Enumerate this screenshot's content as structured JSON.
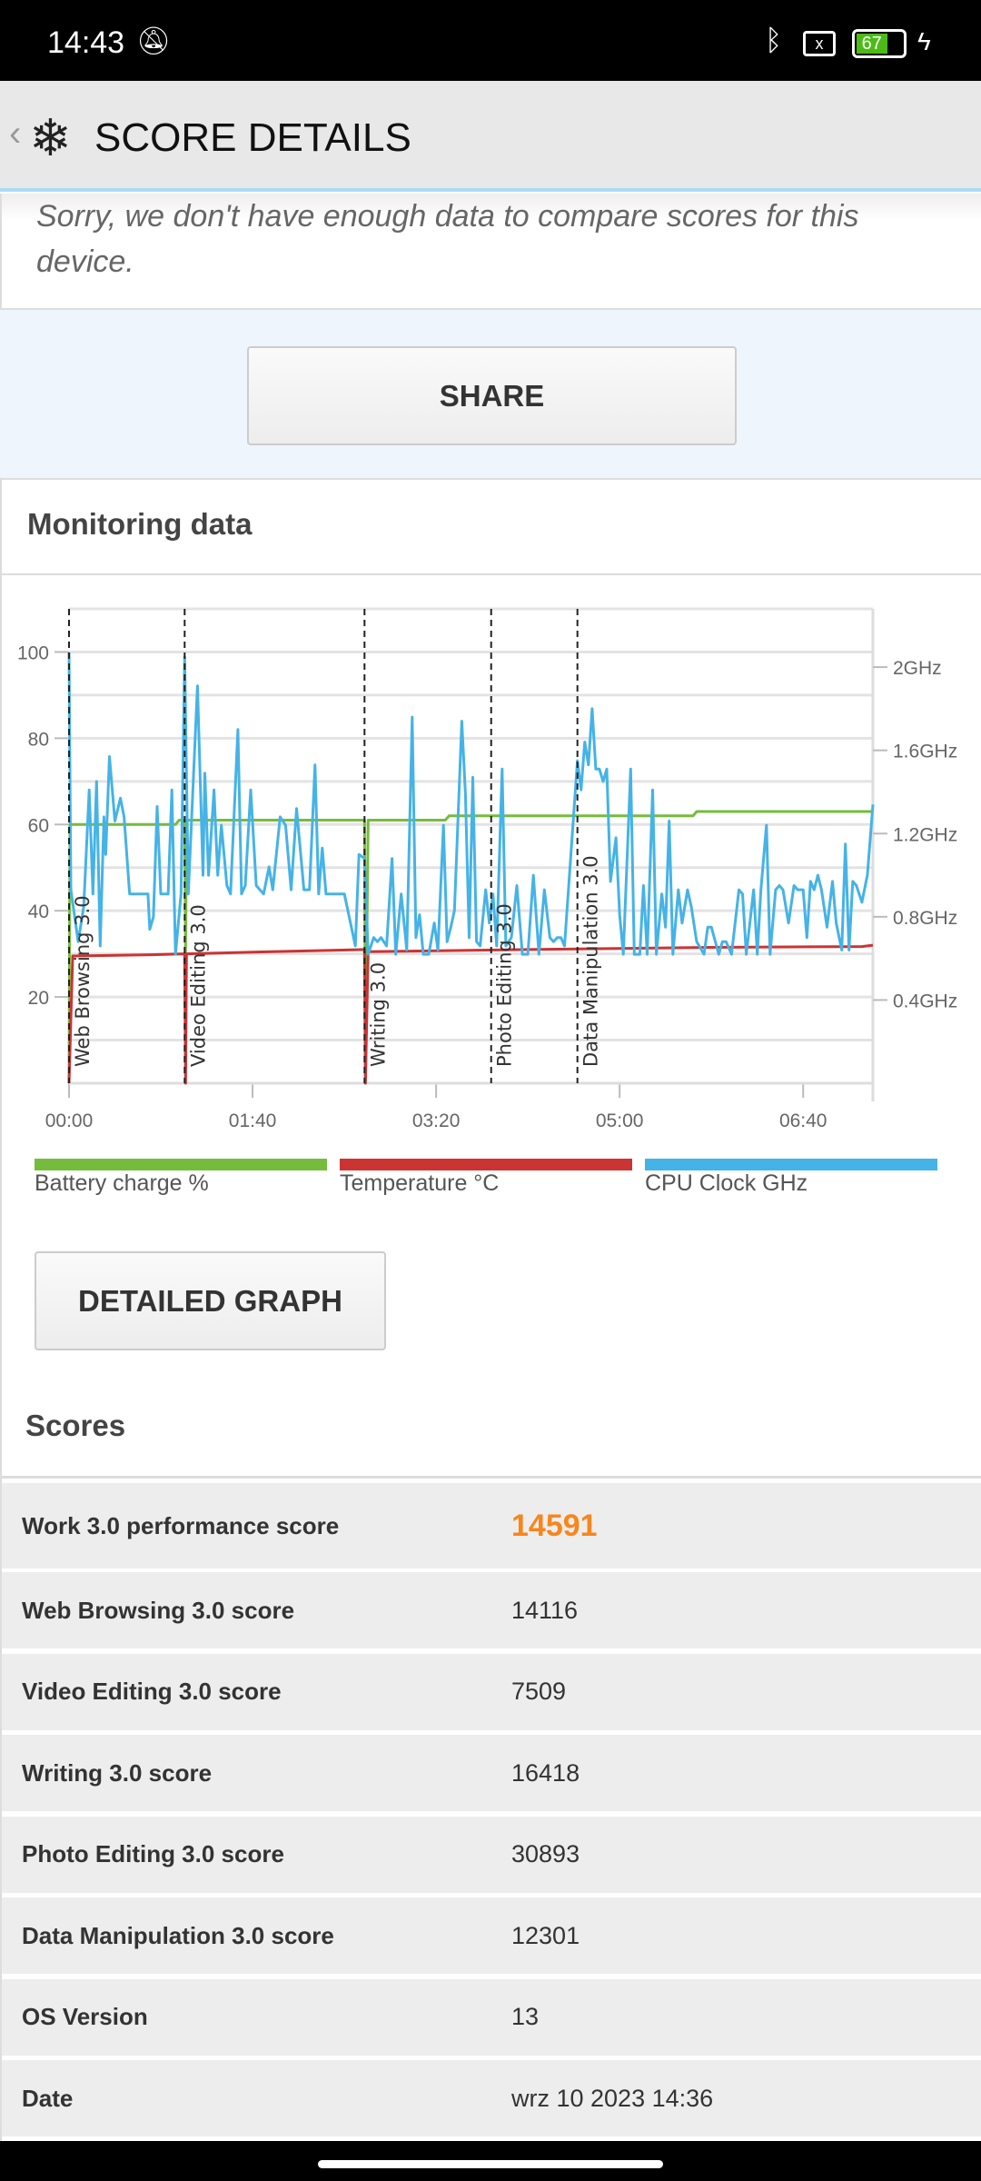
{
  "status_bar": {
    "time": "14:43",
    "battery": "67"
  },
  "header": {
    "title": "SCORE DETAILS"
  },
  "notice": "Sorry, we don't have enough data to compare scores for this device.",
  "share_label": "SHARE",
  "monitoring": {
    "title": "Monitoring data",
    "detailed_graph_label": "DETAILED GRAPH"
  },
  "colors": {
    "battery": "#76bc3c",
    "temperature": "#cc3333",
    "cpu": "#45b3e6",
    "accent": "#f7861d"
  },
  "chart_data": {
    "type": "line",
    "xlim": [
      0,
      438
    ],
    "x_ticks": [
      {
        "v": 0,
        "label": "00:00"
      },
      {
        "v": 100,
        "label": "01:40"
      },
      {
        "v": 200,
        "label": "03:20"
      },
      {
        "v": 300,
        "label": "05:00"
      },
      {
        "v": 400,
        "label": "06:40"
      }
    ],
    "y_left": {
      "range": [
        0,
        110
      ],
      "ticks": [
        {
          "v": 20,
          "label": "20"
        },
        {
          "v": 40,
          "label": "40"
        },
        {
          "v": 60,
          "label": "60"
        },
        {
          "v": 80,
          "label": "80"
        },
        {
          "v": 100,
          "label": "100"
        }
      ]
    },
    "y_right": {
      "range": [
        0,
        2.28
      ],
      "ticks": [
        {
          "v": 0.4,
          "label": "0.4GHz"
        },
        {
          "v": 0.8,
          "label": "0.8GHz"
        },
        {
          "v": 1.2,
          "label": "1.2GHz"
        },
        {
          "v": 1.6,
          "label": "1.6GHz"
        },
        {
          "v": 2.0,
          "label": "2GHz"
        }
      ]
    },
    "events": [
      {
        "t": 0,
        "label": "Web Browsing 3.0"
      },
      {
        "t": 63,
        "label": "Video Editing 3.0"
      },
      {
        "t": 161,
        "label": "Writing 3.0"
      },
      {
        "t": 230,
        "label": "Photo Editing 3.0"
      },
      {
        "t": 277,
        "label": "Data Manipulation 3.0"
      }
    ],
    "legend": [
      "Battery charge %",
      "Temperature °C",
      "CPU Clock GHz"
    ],
    "series": [
      {
        "name": "Battery charge %",
        "axis": "left",
        "points": [
          [
            0,
            0
          ],
          [
            0.5,
            60
          ],
          [
            58,
            60
          ],
          [
            60,
            61
          ],
          [
            63,
            61
          ],
          [
            63.5,
            30
          ],
          [
            64,
            61
          ],
          [
            161,
            61
          ],
          [
            161.5,
            0
          ],
          [
            163,
            61
          ],
          [
            205,
            61
          ],
          [
            207,
            62
          ],
          [
            340,
            62
          ],
          [
            342,
            63
          ],
          [
            438,
            63
          ]
        ]
      },
      {
        "name": "Temperature °C",
        "axis": "left",
        "points": [
          [
            0,
            0
          ],
          [
            2,
            29.5
          ],
          [
            45,
            29.8
          ],
          [
            63,
            30
          ],
          [
            63.5,
            0
          ],
          [
            64,
            30
          ],
          [
            110,
            30.5
          ],
          [
            161,
            31
          ],
          [
            161.5,
            0
          ],
          [
            163,
            30.5
          ],
          [
            250,
            31
          ],
          [
            350,
            31.5
          ],
          [
            432,
            31.7
          ],
          [
            438,
            32
          ]
        ]
      },
      {
        "name": "CPU Clock GHz",
        "axis": "right",
        "points": [
          [
            0,
            2.07
          ],
          [
            1,
            0.93
          ],
          [
            5,
            0.68
          ],
          [
            8,
            0.85
          ],
          [
            11,
            1.41
          ],
          [
            13,
            0.91
          ],
          [
            15,
            1.45
          ],
          [
            17,
            0.66
          ],
          [
            19,
            1.28
          ],
          [
            20,
            1.1
          ],
          [
            22,
            1.57
          ],
          [
            25,
            1.26
          ],
          [
            28,
            1.37
          ],
          [
            30,
            1.28
          ],
          [
            33,
            0.91
          ],
          [
            43,
            0.91
          ],
          [
            44,
            0.74
          ],
          [
            46,
            0.8
          ],
          [
            48,
            1.33
          ],
          [
            50,
            0.91
          ],
          [
            54,
            0.91
          ],
          [
            56,
            1.41
          ],
          [
            58,
            0.62
          ],
          [
            61,
            0.91
          ],
          [
            63,
            2.05
          ],
          [
            65,
            0.91
          ],
          [
            70,
            1.91
          ],
          [
            73,
            1.0
          ],
          [
            74,
            1.49
          ],
          [
            76,
            1.0
          ],
          [
            79,
            1.41
          ],
          [
            81,
            1.0
          ],
          [
            83,
            1.24
          ],
          [
            86,
            0.95
          ],
          [
            88,
            0.91
          ],
          [
            92,
            1.7
          ],
          [
            94,
            0.91
          ],
          [
            96,
            0.95
          ],
          [
            99,
            1.41
          ],
          [
            102,
            0.95
          ],
          [
            106,
            0.91
          ],
          [
            109,
            1.04
          ],
          [
            111,
            0.93
          ],
          [
            115,
            1.28
          ],
          [
            118,
            1.24
          ],
          [
            121,
            0.93
          ],
          [
            124,
            1.32
          ],
          [
            128,
            0.93
          ],
          [
            131,
            0.93
          ],
          [
            134,
            1.53
          ],
          [
            136,
            0.91
          ],
          [
            138,
            1.13
          ],
          [
            140,
            0.91
          ],
          [
            150,
            0.91
          ],
          [
            156,
            0.66
          ],
          [
            158,
            1.1
          ],
          [
            161,
            1.08
          ],
          [
            163,
            0.62
          ],
          [
            166,
            0.7
          ],
          [
            168,
            0.68
          ],
          [
            170,
            0.7
          ],
          [
            173,
            0.66
          ],
          [
            176,
            1.08
          ],
          [
            178,
            0.62
          ],
          [
            181,
            0.91
          ],
          [
            184,
            0.64
          ],
          [
            187,
            1.76
          ],
          [
            189,
            0.7
          ],
          [
            191,
            0.81
          ],
          [
            193,
            0.62
          ],
          [
            196,
            0.62
          ],
          [
            199,
            0.77
          ],
          [
            201,
            0.64
          ],
          [
            204,
            1.24
          ],
          [
            206,
            0.68
          ],
          [
            208,
            0.75
          ],
          [
            210,
            0.83
          ],
          [
            214,
            1.74
          ],
          [
            216,
            1.39
          ],
          [
            218,
            0.7
          ],
          [
            220,
            1.47
          ],
          [
            222,
            0.68
          ],
          [
            224,
            0.66
          ],
          [
            227,
            0.93
          ],
          [
            229,
            0.77
          ],
          [
            231,
            0.91
          ],
          [
            233,
            0.66
          ],
          [
            236,
            1.51
          ],
          [
            238,
            0.66
          ],
          [
            241,
            0.7
          ],
          [
            244,
            0.95
          ],
          [
            247,
            0.62
          ],
          [
            250,
            0.62
          ],
          [
            253,
            1.0
          ],
          [
            256,
            0.62
          ],
          [
            259,
            0.93
          ],
          [
            262,
            0.7
          ],
          [
            264,
            0.68
          ],
          [
            266,
            0.7
          ],
          [
            268,
            0.7
          ],
          [
            270,
            0.66
          ],
          [
            277,
            1.55
          ],
          [
            279,
            1.41
          ],
          [
            281,
            1.64
          ],
          [
            283,
            1.53
          ],
          [
            285,
            1.8
          ],
          [
            287,
            1.51
          ],
          [
            289,
            1.51
          ],
          [
            291,
            1.45
          ],
          [
            293,
            1.51
          ],
          [
            295,
            0.97
          ],
          [
            298,
            1.18
          ],
          [
            300,
            0.81
          ],
          [
            302,
            0.62
          ],
          [
            306,
            1.51
          ],
          [
            308,
            0.62
          ],
          [
            311,
            0.62
          ],
          [
            313,
            0.95
          ],
          [
            315,
            0.62
          ],
          [
            318,
            1.41
          ],
          [
            320,
            0.62
          ],
          [
            323,
            0.91
          ],
          [
            325,
            0.75
          ],
          [
            327,
            1.26
          ],
          [
            329,
            0.62
          ],
          [
            332,
            0.93
          ],
          [
            334,
            0.77
          ],
          [
            337,
            0.93
          ],
          [
            339,
            0.85
          ],
          [
            342,
            0.68
          ],
          [
            346,
            0.62
          ],
          [
            348,
            0.75
          ],
          [
            350,
            0.75
          ],
          [
            354,
            0.62
          ],
          [
            356,
            0.68
          ],
          [
            358,
            0.68
          ],
          [
            361,
            0.62
          ],
          [
            365,
            0.93
          ],
          [
            367,
            0.91
          ],
          [
            369,
            0.62
          ],
          [
            373,
            0.93
          ],
          [
            375,
            0.62
          ],
          [
            377,
            0.93
          ],
          [
            380,
            1.24
          ],
          [
            382,
            0.62
          ],
          [
            385,
            0.93
          ],
          [
            387,
            0.95
          ],
          [
            389,
            0.93
          ],
          [
            392,
            0.77
          ],
          [
            395,
            0.95
          ],
          [
            397,
            0.93
          ],
          [
            400,
            0.93
          ],
          [
            402,
            0.7
          ],
          [
            404,
            0.97
          ],
          [
            406,
            0.93
          ],
          [
            408,
            1.0
          ],
          [
            410,
            0.93
          ],
          [
            413,
            0.75
          ],
          [
            416,
            0.97
          ],
          [
            418,
            0.77
          ],
          [
            421,
            0.64
          ],
          [
            423,
            1.15
          ],
          [
            425,
            0.64
          ],
          [
            427,
            0.97
          ],
          [
            429,
            0.95
          ],
          [
            432,
            0.87
          ],
          [
            435,
            1.0
          ],
          [
            438,
            1.34
          ]
        ]
      }
    ]
  },
  "scores": {
    "title": "Scores",
    "rows": [
      {
        "label": "Work 3.0 performance score",
        "value": "14591"
      },
      {
        "label": "Web Browsing 3.0 score",
        "value": "14116"
      },
      {
        "label": "Video Editing 3.0 score",
        "value": "7509"
      },
      {
        "label": "Writing 3.0 score",
        "value": "16418"
      },
      {
        "label": "Photo Editing 3.0 score",
        "value": "30893"
      },
      {
        "label": "Data Manipulation 3.0 score",
        "value": "12301"
      },
      {
        "label": "OS Version",
        "value": "13"
      },
      {
        "label": "Date",
        "value": "wrz 10 2023 14:36"
      }
    ]
  }
}
